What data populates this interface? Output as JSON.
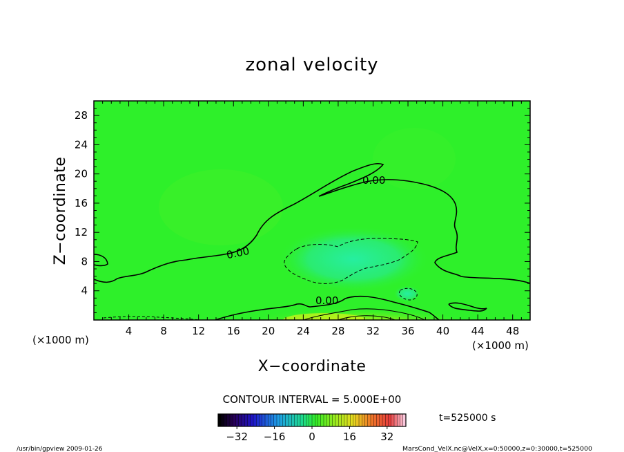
{
  "chart_data": {
    "type": "heatmap",
    "title": "zonal velocity",
    "xlabel": "X−coordinate",
    "ylabel": "Z−coordinate",
    "x_unit": "(×1000 m)",
    "y_unit": "(×1000 m)",
    "xlim": [
      0,
      50
    ],
    "ylim": [
      0,
      30
    ],
    "x_ticks": [
      "4",
      "8",
      "12",
      "16",
      "20",
      "24",
      "28",
      "32",
      "36",
      "40",
      "44",
      "48"
    ],
    "y_ticks": [
      "4",
      "8",
      "12",
      "16",
      "20",
      "24",
      "28"
    ],
    "contour_label": "0.00",
    "contour_interval_text": "CONTOUR INTERVAL = 5.000E+00",
    "colorbar": {
      "min": -40,
      "max": 40,
      "tick_labels": [
        "−32",
        "−16",
        "0",
        "16",
        "32"
      ],
      "tick_values": [
        -32,
        -16,
        0,
        16,
        32
      ]
    },
    "time_text": "t=525000 s",
    "footer_left": "/usr/bin/gpview  2009-01-26",
    "footer_right": "MarsCond_VelX.nc@VelX,x=0:50000,z=0:30000,t=525000",
    "colors": {
      "background_field": "#2ef02a",
      "negative_region": "#27ec7a",
      "positive_region": "#b8f21e"
    }
  }
}
